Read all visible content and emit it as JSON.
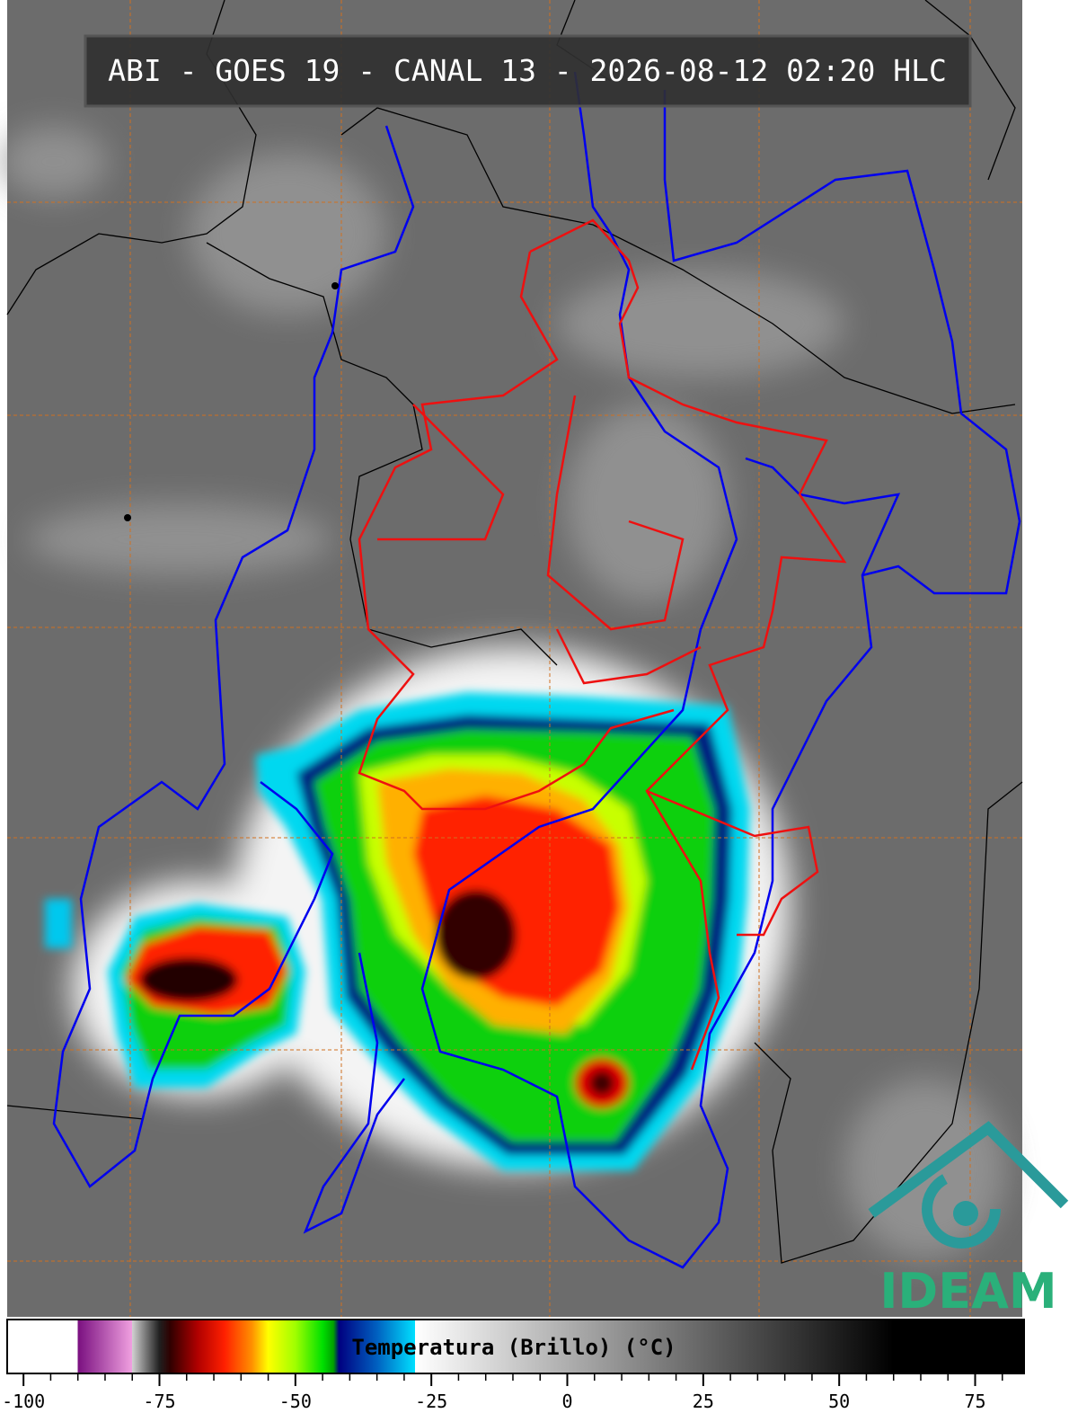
{
  "title": "ABI - GOES 19 - CANAL 13 - 2026-08-12 02:20 HLC",
  "logo": "IDEAM",
  "colorbar": {
    "label": "Temperatura (Brillo) (°C)",
    "lim": [
      -103,
      84
    ],
    "ticks": [
      -100,
      -75,
      -50,
      -25,
      0,
      25,
      50,
      75
    ],
    "minor_ticks": [
      -95,
      -90,
      -85,
      -80,
      -70,
      -65,
      -60,
      -55,
      -45,
      -40,
      -35,
      -30,
      -20,
      -15,
      -10,
      -5,
      5,
      10,
      15,
      20,
      30,
      35,
      40,
      45,
      55,
      60,
      65,
      70,
      80
    ],
    "colormap": [
      {
        "value": -103,
        "color": "#ffffff"
      },
      {
        "value": -90,
        "color": "#ffffff"
      },
      {
        "value": -90,
        "color": "#7a1080"
      },
      {
        "value": -80,
        "color": "#f0a0e0"
      },
      {
        "value": -80,
        "color": "#d0d0d0"
      },
      {
        "value": -75,
        "color": "#202020"
      },
      {
        "value": -73,
        "color": "#300000"
      },
      {
        "value": -68,
        "color": "#b00000"
      },
      {
        "value": -63,
        "color": "#ff2000"
      },
      {
        "value": -58,
        "color": "#ff9000"
      },
      {
        "value": -55,
        "color": "#ffff00"
      },
      {
        "value": -50,
        "color": "#a0ff00"
      },
      {
        "value": -45,
        "color": "#00e000"
      },
      {
        "value": -43,
        "color": "#00a000"
      },
      {
        "value": -42,
        "color": "#000080"
      },
      {
        "value": -35,
        "color": "#0060c0"
      },
      {
        "value": -28,
        "color": "#00e0ff"
      },
      {
        "value": -28,
        "color": "#ffffff"
      },
      {
        "value": 60,
        "color": "#000000"
      },
      {
        "value": 84,
        "color": "#000000"
      }
    ]
  }
}
